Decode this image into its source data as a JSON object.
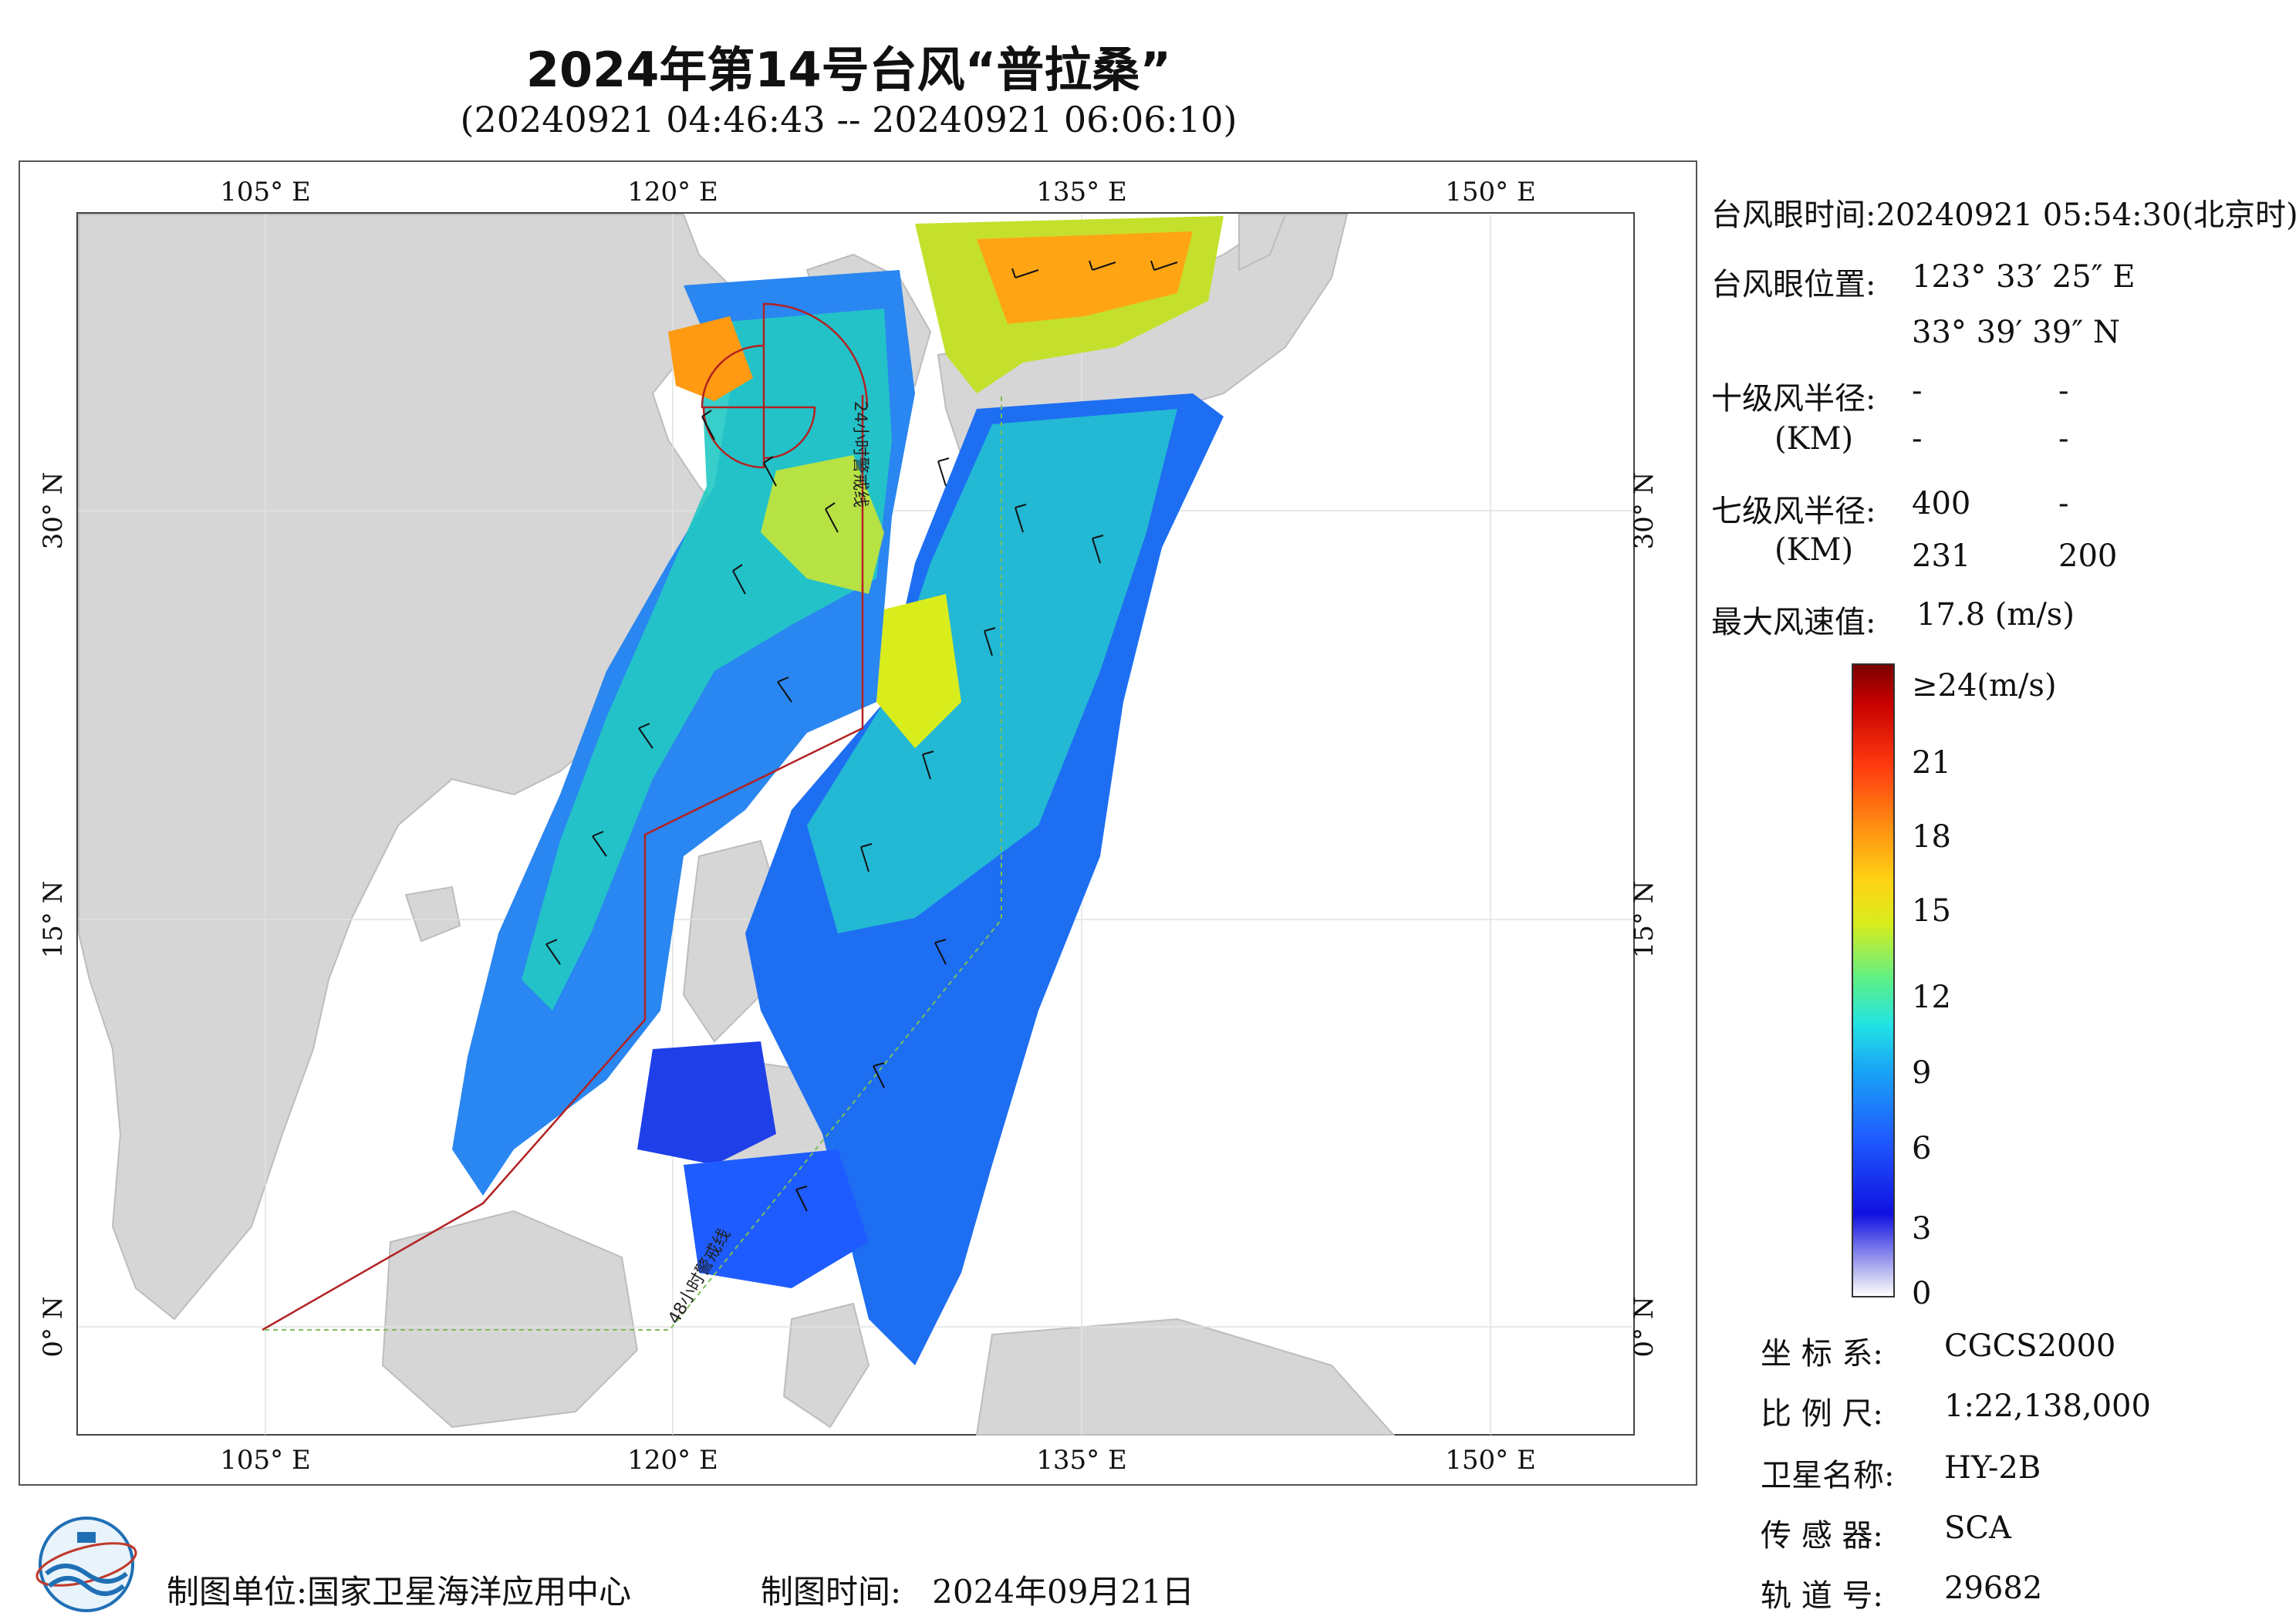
{
  "header": {
    "title": "2024年第14号台风“普拉桑”",
    "subtitle": "(20240921 04:46:43 -- 20240921 06:06:10)"
  },
  "map": {
    "lon_labels": [
      "105° E",
      "120° E",
      "135° E",
      "150° E"
    ],
    "lat_labels": [
      "30° N",
      "15° N",
      "0° N"
    ],
    "warning_line_24h": "24小时警戒线",
    "warning_line_48h": "48小时警戒线",
    "land_color": "#d6d6d6",
    "sea_color": "#ffffff",
    "warning_24h_color": "#b22222",
    "warning_48h_color": "#7bbf5a"
  },
  "info": {
    "eye_time_label": "台风眼时间:",
    "eye_time_value": "20240921 05:54:30(北京时)",
    "eye_pos_label": "台风眼位置:",
    "eye_lon": "123° 33′ 25″ E",
    "eye_lat": "33° 39′ 39″ N",
    "r10_label": "十级风半径:",
    "km_label": "(KM)",
    "r10_values": [
      "-",
      "-",
      "-",
      "-"
    ],
    "r7_label": "七级风半径:",
    "r7_values": [
      "400",
      "-",
      "231",
      "200"
    ],
    "max_wind_label": "最大风速值:",
    "max_wind_value": "17.8 (m/s)"
  },
  "colorbar": {
    "labels": [
      "≥24(m/s)",
      "21",
      "18",
      "15",
      "12",
      "9",
      "6",
      "3",
      "0"
    ]
  },
  "meta": {
    "crs_label": "坐 标 系:",
    "crs_value": "CGCS2000",
    "scale_label": "比 例 尺:",
    "scale_value": "1:22,138,000",
    "satellite_label": "卫星名称:",
    "satellite_value": "HY-2B",
    "sensor_label": "传 感 器:",
    "sensor_value": "SCA",
    "orbit_label": "轨 道 号:",
    "orbit_value": "29682"
  },
  "footer": {
    "unit_label": "制图单位:",
    "unit_value": "国家卫星海洋应用中心",
    "date_label": "制图时间:",
    "date_value": "2024年09月21日"
  }
}
